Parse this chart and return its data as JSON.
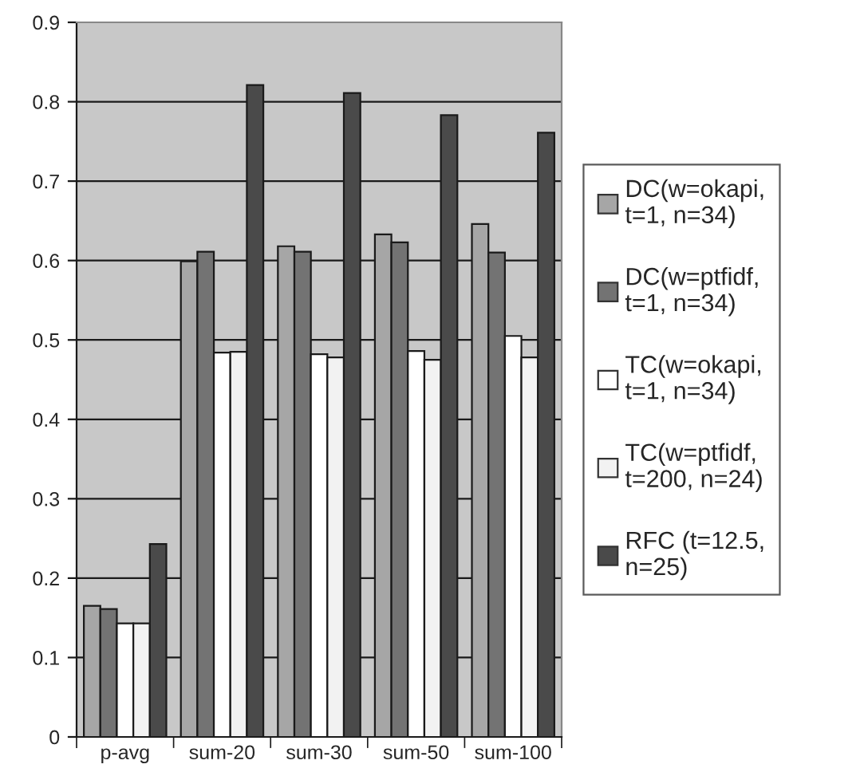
{
  "chart_data": {
    "type": "bar",
    "categories": [
      "p-avg",
      "sum-20",
      "sum-30",
      "sum-50",
      "sum-100"
    ],
    "series": [
      {
        "name": "DC(w=okapi,\nt=1, n=34)",
        "color": "#a6a6a6",
        "values": [
          0.165,
          0.599,
          0.618,
          0.633,
          0.646
        ]
      },
      {
        "name": "DC(w=ptfidf,\nt=1, n=34)",
        "color": "#737373",
        "values": [
          0.161,
          0.611,
          0.611,
          0.623,
          0.61
        ]
      },
      {
        "name": "TC(w=okapi,\nt=1, n=34)",
        "color": "#ffffff",
        "values": [
          0.143,
          0.484,
          0.482,
          0.486,
          0.505
        ]
      },
      {
        "name": "TC(w=ptfidf,\nt=200, n=24)",
        "color": "#f2f2f2",
        "values": [
          0.143,
          0.485,
          0.478,
          0.475,
          0.478
        ]
      },
      {
        "name": "RFC (t=12.5,\nn=25)",
        "color": "#4a4a4a",
        "values": [
          0.243,
          0.821,
          0.811,
          0.783,
          0.761
        ]
      }
    ],
    "ylim": [
      0,
      0.9
    ],
    "yticks": [
      0,
      0.1,
      0.2,
      0.3,
      0.4,
      0.5,
      0.6,
      0.7,
      0.8,
      0.9
    ],
    "grid": "y",
    "legend": "right"
  }
}
